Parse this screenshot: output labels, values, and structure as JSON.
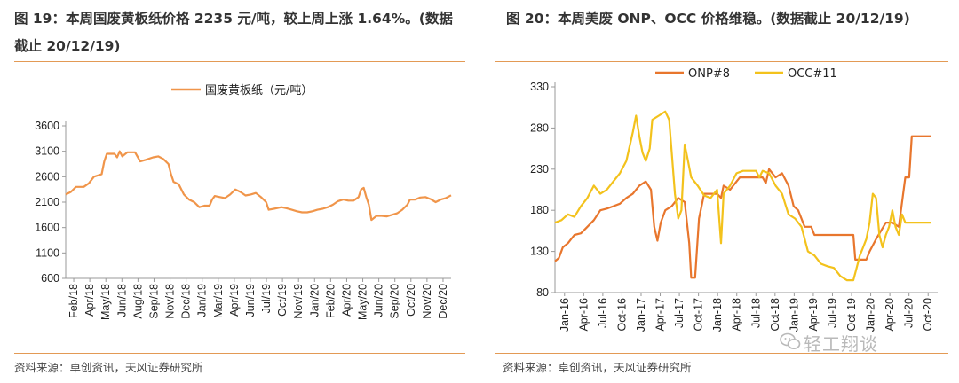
{
  "left": {
    "title": "图 19：本周国废黄板纸价格 2235 元/吨，较上周上涨 1.64%。(数据截止 20/12/19)",
    "source": "资料来源：卓创资讯，天风证券研究所"
  },
  "right": {
    "title": "图 20：本周美废 ONP、OCC 价格维稳。(数据截止 20/12/19)",
    "source": "资料来源：卓创资讯，天风证券研究所"
  },
  "watermark": {
    "text": "轻工翔谈",
    "icon": "wechat-icon"
  },
  "chart_data": [
    {
      "type": "line",
      "title": "",
      "ylim": [
        600,
        3600
      ],
      "yticks": [
        600,
        1100,
        1600,
        2100,
        2600,
        3100,
        3600
      ],
      "xticks": [
        "Feb/18",
        "Apr/18",
        "May/18",
        "Jun/18",
        "Aug/18",
        "Sep/18",
        "Nov/18",
        "Dec/18",
        "Jan/19",
        "Mar/19",
        "Apr/19",
        "Jun/19",
        "Jul/19",
        "Oct/19",
        "Nov/19",
        "Jan/20",
        "Feb/20",
        "Apr/20",
        "May/20",
        "Jun/20",
        "Sep/20",
        "Oct/20",
        "Nov/20",
        "Dec/20"
      ],
      "xrange": [
        0,
        150
      ],
      "series": [
        {
          "name": "国废黄板纸（元/吨）",
          "color": "#f0954a",
          "points": [
            [
              0,
              2250
            ],
            [
              2,
              2300
            ],
            [
              4,
              2400
            ],
            [
              7,
              2400
            ],
            [
              9,
              2470
            ],
            [
              11,
              2600
            ],
            [
              14,
              2650
            ],
            [
              15,
              2900
            ],
            [
              16,
              3050
            ],
            [
              19,
              3050
            ],
            [
              20,
              2980
            ],
            [
              21,
              3100
            ],
            [
              22,
              3000
            ],
            [
              24,
              3080
            ],
            [
              27,
              3080
            ],
            [
              29,
              2900
            ],
            [
              31,
              2930
            ],
            [
              34,
              2980
            ],
            [
              36,
              3000
            ],
            [
              38,
              2950
            ],
            [
              40,
              2850
            ],
            [
              41,
              2650
            ],
            [
              42,
              2500
            ],
            [
              44,
              2450
            ],
            [
              46,
              2250
            ],
            [
              48,
              2150
            ],
            [
              50,
              2100
            ],
            [
              52,
              2000
            ],
            [
              54,
              2030
            ],
            [
              56,
              2030
            ],
            [
              57,
              2150
            ],
            [
              58,
              2220
            ],
            [
              60,
              2200
            ],
            [
              62,
              2180
            ],
            [
              64,
              2250
            ],
            [
              66,
              2350
            ],
            [
              68,
              2300
            ],
            [
              70,
              2230
            ],
            [
              72,
              2250
            ],
            [
              74,
              2280
            ],
            [
              76,
              2200
            ],
            [
              78,
              2100
            ],
            [
              79,
              1950
            ],
            [
              81,
              1970
            ],
            [
              84,
              2000
            ],
            [
              86,
              1980
            ],
            [
              88,
              1950
            ],
            [
              90,
              1920
            ],
            [
              92,
              1900
            ],
            [
              94,
              1900
            ],
            [
              96,
              1920
            ],
            [
              98,
              1950
            ],
            [
              100,
              1970
            ],
            [
              102,
              2000
            ],
            [
              104,
              2050
            ],
            [
              106,
              2120
            ],
            [
              108,
              2150
            ],
            [
              110,
              2130
            ],
            [
              112,
              2130
            ],
            [
              114,
              2200
            ],
            [
              115,
              2350
            ],
            [
              116,
              2380
            ],
            [
              117,
              2200
            ],
            [
              118,
              2050
            ],
            [
              119,
              1750
            ],
            [
              121,
              1830
            ],
            [
              123,
              1830
            ],
            [
              125,
              1820
            ],
            [
              127,
              1850
            ],
            [
              129,
              1880
            ],
            [
              131,
              1950
            ],
            [
              133,
              2050
            ],
            [
              134,
              2150
            ],
            [
              136,
              2150
            ],
            [
              138,
              2190
            ],
            [
              140,
              2200
            ],
            [
              142,
              2160
            ],
            [
              144,
              2100
            ],
            [
              146,
              2150
            ],
            [
              148,
              2180
            ],
            [
              150,
              2235
            ]
          ]
        }
      ]
    },
    {
      "type": "line",
      "title": "",
      "ylim": [
        80,
        330
      ],
      "yticks": [
        80,
        130,
        180,
        230,
        280,
        330
      ],
      "xticks": [
        "Jan-16",
        "Apr-16",
        "Jul-16",
        "Oct-16",
        "Jan-17",
        "Apr-17",
        "Jul-17",
        "Oct-17",
        "Jan-18",
        "Apr-18",
        "Jul-18",
        "Oct-18",
        "Jan-19",
        "Apr-19",
        "Jul-19",
        "Oct-19",
        "Jan-20",
        "Apr-20",
        "Jul-20",
        "Oct-20"
      ],
      "xrange": [
        0,
        59
      ],
      "series": [
        {
          "name": "ONP#8",
          "color": "#e8762d",
          "points": [
            [
              0,
              118
            ],
            [
              0.6,
              122
            ],
            [
              1.2,
              135
            ],
            [
              2,
              140
            ],
            [
              3,
              150
            ],
            [
              4,
              152
            ],
            [
              5,
              160
            ],
            [
              6,
              168
            ],
            [
              7,
              180
            ],
            [
              8,
              182
            ],
            [
              9,
              185
            ],
            [
              10,
              188
            ],
            [
              11,
              195
            ],
            [
              12,
              200
            ],
            [
              13,
              210
            ],
            [
              14,
              215
            ],
            [
              14.8,
              205
            ],
            [
              15.3,
              160
            ],
            [
              15.8,
              143
            ],
            [
              16.3,
              165
            ],
            [
              17,
              180
            ],
            [
              18,
              185
            ],
            [
              19,
              195
            ],
            [
              20,
              190
            ],
            [
              20.7,
              140
            ],
            [
              21,
              98
            ],
            [
              21.6,
              98
            ],
            [
              22.2,
              170
            ],
            [
              23,
              200
            ],
            [
              25,
              200
            ],
            [
              25.6,
              195
            ],
            [
              26,
              210
            ],
            [
              27,
              205
            ],
            [
              28,
              215
            ],
            [
              28.5,
              220
            ],
            [
              32,
              220
            ],
            [
              32.5,
              213
            ],
            [
              33,
              230
            ],
            [
              34,
              220
            ],
            [
              35,
              225
            ],
            [
              36,
              210
            ],
            [
              36.8,
              185
            ],
            [
              37.5,
              180
            ],
            [
              38.5,
              160
            ],
            [
              39.5,
              160
            ],
            [
              40,
              150
            ],
            [
              46,
              150
            ],
            [
              46.3,
              120
            ],
            [
              48,
              120
            ],
            [
              48.5,
              130
            ],
            [
              49.5,
              145
            ],
            [
              51,
              165
            ],
            [
              52,
              165
            ],
            [
              53,
              160
            ],
            [
              54,
              220
            ],
            [
              54.6,
              220
            ],
            [
              55,
              270
            ],
            [
              58,
              270
            ]
          ]
        },
        {
          "name": "OCC#11",
          "color": "#f3c21c",
          "points": [
            [
              0,
              165
            ],
            [
              1,
              168
            ],
            [
              2,
              175
            ],
            [
              3,
              172
            ],
            [
              4,
              185
            ],
            [
              5,
              195
            ],
            [
              6,
              210
            ],
            [
              7,
              200
            ],
            [
              8,
              205
            ],
            [
              9,
              215
            ],
            [
              10,
              225
            ],
            [
              11,
              240
            ],
            [
              12,
              275
            ],
            [
              12.5,
              295
            ],
            [
              13,
              270
            ],
            [
              13.5,
              250
            ],
            [
              14,
              240
            ],
            [
              14.6,
              255
            ],
            [
              15,
              290
            ],
            [
              16,
              295
            ],
            [
              17,
              300
            ],
            [
              17.6,
              290
            ],
            [
              18,
              250
            ],
            [
              18.5,
              200
            ],
            [
              19,
              170
            ],
            [
              19.5,
              180
            ],
            [
              20,
              260
            ],
            [
              20.5,
              240
            ],
            [
              21,
              220
            ],
            [
              22,
              210
            ],
            [
              23,
              198
            ],
            [
              24,
              195
            ],
            [
              25,
              205
            ],
            [
              25.6,
              140
            ],
            [
              26,
              200
            ],
            [
              27,
              210
            ],
            [
              28,
              225
            ],
            [
              29,
              228
            ],
            [
              31,
              228
            ],
            [
              31.5,
              220
            ],
            [
              32,
              228
            ],
            [
              33,
              225
            ],
            [
              34,
              210
            ],
            [
              35,
              200
            ],
            [
              36,
              175
            ],
            [
              37,
              170
            ],
            [
              38,
              160
            ],
            [
              39,
              130
            ],
            [
              40,
              125
            ],
            [
              41,
              115
            ],
            [
              42,
              112
            ],
            [
              43,
              110
            ],
            [
              44,
              100
            ],
            [
              45,
              95
            ],
            [
              46,
              95
            ],
            [
              46.5,
              110
            ],
            [
              47,
              125
            ],
            [
              47.5,
              135
            ],
            [
              48,
              145
            ],
            [
              48.5,
              165
            ],
            [
              49,
              200
            ],
            [
              49.5,
              195
            ],
            [
              50,
              150
            ],
            [
              50.5,
              135
            ],
            [
              51,
              150
            ],
            [
              51.5,
              160
            ],
            [
              52,
              180
            ],
            [
              52.5,
              160
            ],
            [
              53,
              150
            ],
            [
              53.5,
              175
            ],
            [
              54,
              165
            ],
            [
              58,
              165
            ]
          ]
        }
      ]
    }
  ]
}
